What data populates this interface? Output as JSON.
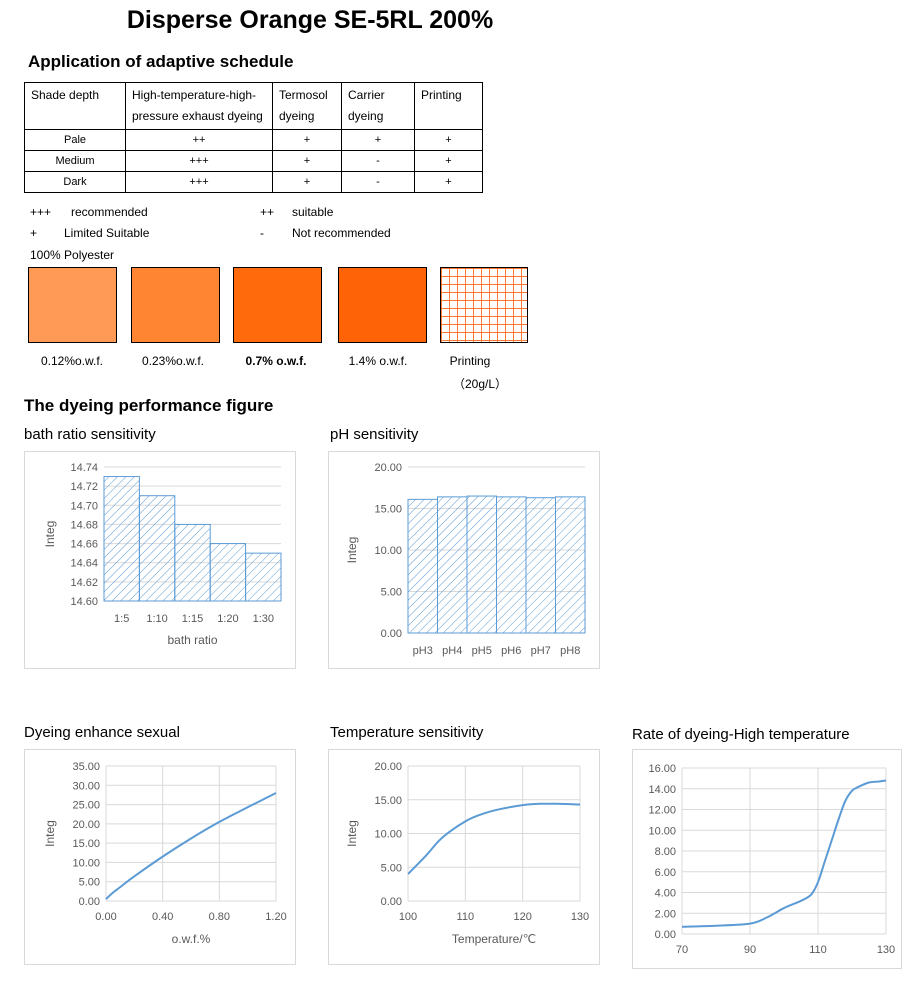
{
  "title": "Disperse Orange SE-5RL 200%",
  "schedule": {
    "heading": "Application of adaptive schedule",
    "headers": [
      "Shade depth",
      "High-temperature-high-pressure exhaust dyeing",
      "Termosol dyeing",
      "Carrier dyeing",
      "Printing"
    ],
    "rows": [
      [
        "Pale",
        "++",
        "+",
        "+",
        "+"
      ],
      [
        "Medium",
        "+++",
        "+",
        "-",
        "+"
      ],
      [
        "Dark",
        "+++",
        "+",
        "-",
        "+"
      ]
    ],
    "legend": {
      "sym1": "+++",
      "txt1": "recommended",
      "sym2": "++",
      "txt2": "suitable",
      "sym3": "+",
      "txt3": "Limited Suitable",
      "sym4": "-",
      "txt4": "Not recommended"
    }
  },
  "swatches": {
    "substrate": "100%  Polyester",
    "items": [
      {
        "label": "0.12%o.w.f.",
        "color": "#FF9A56"
      },
      {
        "label": "0.23%o.w.f.",
        "color": "#FF8533"
      },
      {
        "label": "0.7% o.w.f.",
        "color": "#FF6A0D"
      },
      {
        "label": "1.4% o.w.f.",
        "color": "#FF6308"
      },
      {
        "label": "Printing",
        "sublabel": "（20g/L）",
        "color": "#FF7A30"
      }
    ]
  },
  "performance_heading": "The dyeing performance figure",
  "chart_data": [
    {
      "id": "bath",
      "type": "bar",
      "title": "bath ratio sensitivity",
      "xlabel": "bath ratio",
      "ylabel": "Integ",
      "categories": [
        "1:5",
        "1:10",
        "1:15",
        "1:20",
        "1:30"
      ],
      "values": [
        14.73,
        14.71,
        14.68,
        14.66,
        14.65
      ],
      "ylim": [
        14.6,
        14.74
      ],
      "yticks": [
        "14.74",
        "14.72",
        "14.70",
        "14.68",
        "14.66",
        "14.64",
        "14.62",
        "14.60"
      ],
      "color": "#5B9BD5"
    },
    {
      "id": "ph",
      "type": "bar",
      "title": "pH sensitivity",
      "xlabel": "",
      "ylabel": "Integ",
      "categories": [
        "pH3",
        "pH4",
        "pH5",
        "pH6",
        "pH7",
        "pH8"
      ],
      "values": [
        16.1,
        16.4,
        16.5,
        16.4,
        16.3,
        16.4
      ],
      "ylim": [
        0,
        20
      ],
      "yticks": [
        "20.00",
        "15.00",
        "10.00",
        "5.00",
        "0.00"
      ],
      "color": "#5B9BD5"
    },
    {
      "id": "enhance",
      "type": "line",
      "title": "Dyeing enhance sexual",
      "xlabel": "o.w.f.%",
      "ylabel": "Integ",
      "x": [
        0,
        0.05,
        0.1,
        0.2,
        0.4,
        0.6,
        0.8,
        1.0,
        1.2
      ],
      "y": [
        0.5,
        2.2,
        3.6,
        6.4,
        11.5,
        16.2,
        20.5,
        24.3,
        28.0
      ],
      "xlim": [
        0,
        1.2
      ],
      "ylim": [
        0,
        35
      ],
      "xticks": [
        "0.00",
        "0.40",
        "0.80",
        "1.20"
      ],
      "yticks": [
        "35.00",
        "30.00",
        "25.00",
        "20.00",
        "15.00",
        "10.00",
        "5.00",
        "0.00"
      ],
      "color": "#5B9BD5"
    },
    {
      "id": "temp",
      "type": "line",
      "title": "Temperature sensitivity",
      "xlabel": "Temperature/℃",
      "ylabel": "Integ",
      "x": [
        100,
        103,
        106,
        110,
        113,
        116,
        120,
        123,
        126,
        130
      ],
      "y": [
        4.0,
        6.6,
        9.4,
        11.8,
        12.9,
        13.6,
        14.2,
        14.4,
        14.4,
        14.3
      ],
      "xlim": [
        100,
        130
      ],
      "ylim": [
        0,
        20
      ],
      "xticks": [
        "100",
        "110",
        "120",
        "130"
      ],
      "yticks": [
        "20.00",
        "15.00",
        "10.00",
        "5.00",
        "0.00"
      ],
      "color": "#5B9BD5"
    },
    {
      "id": "rate",
      "type": "line",
      "title": "Rate of dyeing-High temperature",
      "xlabel": "",
      "ylabel": "",
      "x": [
        70,
        80,
        90,
        95,
        100,
        105,
        108,
        110,
        112,
        114,
        116,
        118,
        120,
        122,
        125,
        128,
        130
      ],
      "y": [
        0.7,
        0.8,
        1.0,
        1.6,
        2.5,
        3.2,
        3.8,
        5.0,
        7.0,
        9.0,
        11.0,
        12.8,
        13.8,
        14.2,
        14.6,
        14.7,
        14.8
      ],
      "xlim": [
        70,
        130
      ],
      "ylim": [
        0,
        16
      ],
      "xticks": [
        "70",
        "90",
        "110",
        "130"
      ],
      "yticks": [
        "16.00",
        "14.00",
        "12.00",
        "10.00",
        "8.00",
        "6.00",
        "4.00",
        "2.00",
        "0.00"
      ],
      "color": "#5B9BD5"
    }
  ]
}
